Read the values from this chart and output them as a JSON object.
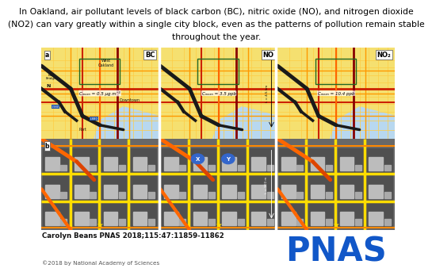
{
  "title_line1": "In Oakland, air pollutant levels of black carbon (BC), nitric oxide (NO), and nitrogen dioxide",
  "title_line2": "(NO2) can vary greatly within a single city block, even as the patterns of pollution remain stable",
  "title_line3": "throughout the year.",
  "citation": "Carolyn Beans PNAS 2018;115:47:11859-11862",
  "copyright": "©2018 by National Academy of Sciences",
  "pnas_text": "PNAS",
  "pnas_color": "#1157C8",
  "background_color": "#ffffff",
  "title_fontsize": 7.8,
  "citation_fontsize": 6.2,
  "copyright_fontsize": 5.2,
  "pnas_fontsize": 30,
  "panel_labels_top": [
    "BC",
    "NO",
    "NO₂"
  ],
  "top_annotations": [
    "Cₘₑₐₙ = 0.5 μg m⁻³",
    "Cₘₑₐₙ = 3.5 ppb",
    "Cₘₑₐₙ = 10.4 ppb"
  ],
  "figure_bg": "#ffffff",
  "map_bg_top": "#f5e070",
  "map_bg_bottom": "#707070",
  "water_color": "#b8d8f0",
  "road_black": "#1a1a1a",
  "road_darkred": "#880000",
  "road_red": "#cc2200",
  "road_orange": "#ff6600",
  "road_yellow": "#ffcc00",
  "road_lightyellow": "#ffee88",
  "grid_orange": "#ff9900",
  "grid_yellow": "#ffdd00",
  "block_dark": "#505050",
  "block_mid": "#808080",
  "block_light": "#aaaaaa",
  "building_white": "#cccccc",
  "green_box": "#226622",
  "sep_color": "#ffffff"
}
